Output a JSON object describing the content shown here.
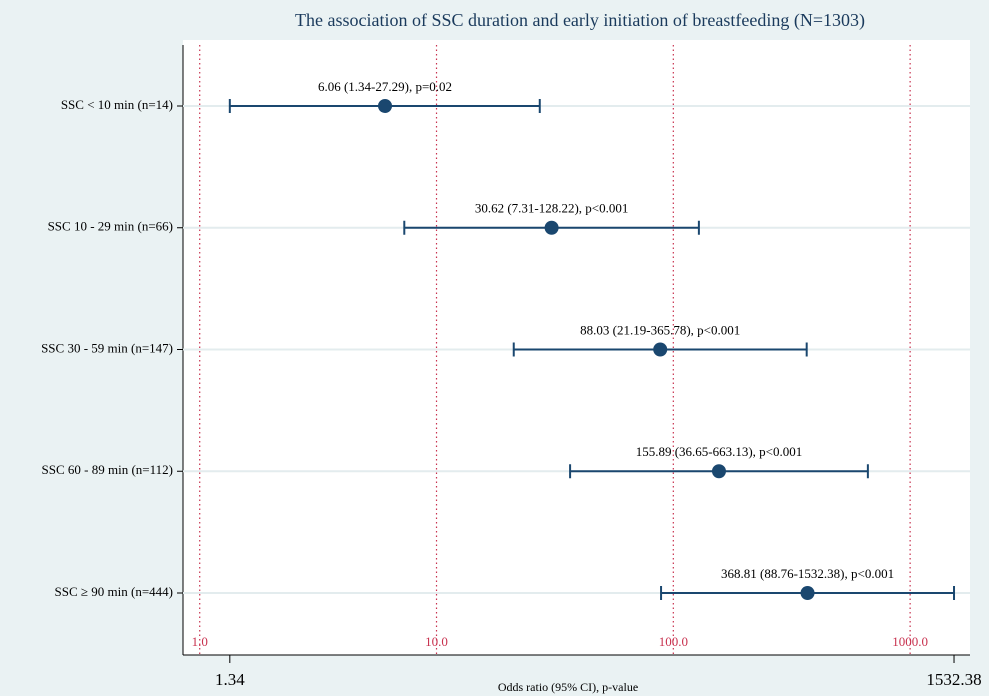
{
  "chart_data": {
    "type": "forest",
    "title": "The association of SSC duration and early initiation of breastfeeding (N=1303)",
    "x_label": "Odds ratio (95% CI), p-value",
    "categories": [
      "SSC < 10 min (n=14)",
      "SSC 10 - 29 min (n=66)",
      "SSC 30 - 59 min (n=147)",
      "SSC 60 - 89 min (n=112)",
      "SSC ≥ 90 min (n=444)"
    ],
    "values": [
      6.06,
      30.62,
      88.03,
      155.89,
      368.81
    ],
    "lower": [
      1.34,
      7.31,
      21.19,
      36.65,
      88.76
    ],
    "upper": [
      27.29,
      128.22,
      365.78,
      663.13,
      1532.38
    ],
    "value_labels": [
      "6.06 (1.34-27.29), p=0.02",
      "30.62 (7.31-128.22), p<0.001",
      "88.03 (21.19-365.78), p<0.001",
      "155.89 (36.65-663.13), p<0.001",
      "368.81 (88.76-1532.38), p<0.001"
    ],
    "color": "#1a476f",
    "xscale": "log",
    "xlim": [
      0.85,
      1790
    ],
    "xticks": [
      1.34,
      1532.38
    ],
    "ref_lines": [
      {
        "value": 1,
        "label": "1.0"
      },
      {
        "value": 10,
        "label": "10.0"
      },
      {
        "value": 100,
        "label": "100.0"
      },
      {
        "value": 1000,
        "label": "1000.0"
      }
    ],
    "ref_color": "#c8324f",
    "grid": true
  }
}
